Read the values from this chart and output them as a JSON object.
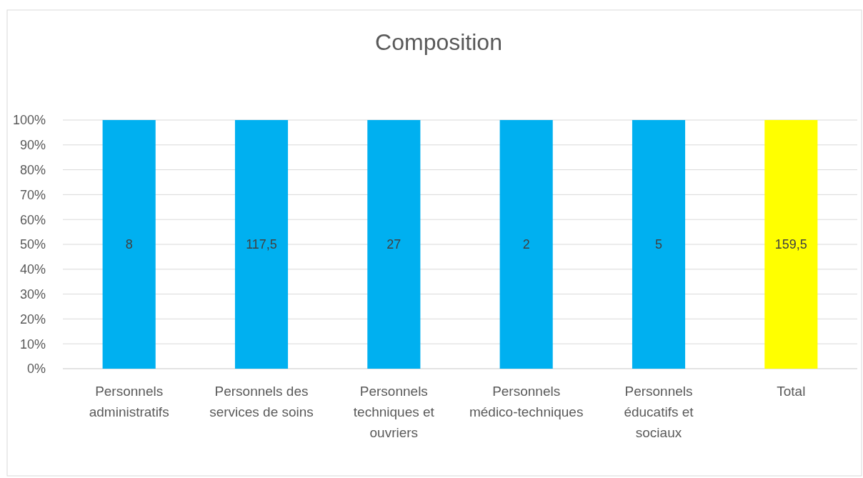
{
  "chart_data": {
    "type": "bar",
    "title": "Composition",
    "categories": [
      "Personnels administratifs",
      "Personnels des services de soins",
      "Personnels techniques et ouvriers",
      "Personnels médico-techniques",
      "Personnels éducatifs et sociaux",
      "Total"
    ],
    "stacked": true,
    "values": [
      100,
      100,
      100,
      100,
      100,
      100
    ],
    "colors": [
      "#00b0f0",
      "#00b0f0",
      "#00b0f0",
      "#00b0f0",
      "#00b0f0",
      "#ffff00"
    ],
    "annotations": [
      "8",
      "117,5",
      "27",
      "2",
      "5",
      "159,5"
    ],
    "ylim": [
      0,
      100
    ],
    "yticks": [
      {
        "value": 0,
        "label": "0%"
      },
      {
        "value": 10,
        "label": "10%"
      },
      {
        "value": 20,
        "label": "20%"
      },
      {
        "value": 30,
        "label": "30%"
      },
      {
        "value": 40,
        "label": "40%"
      },
      {
        "value": 50,
        "label": "50%"
      },
      {
        "value": 60,
        "label": "60%"
      },
      {
        "value": 70,
        "label": "70%"
      },
      {
        "value": 80,
        "label": "80%"
      },
      {
        "value": 90,
        "label": "90%"
      },
      {
        "value": 100,
        "label": "100%"
      }
    ],
    "grid": "y"
  }
}
